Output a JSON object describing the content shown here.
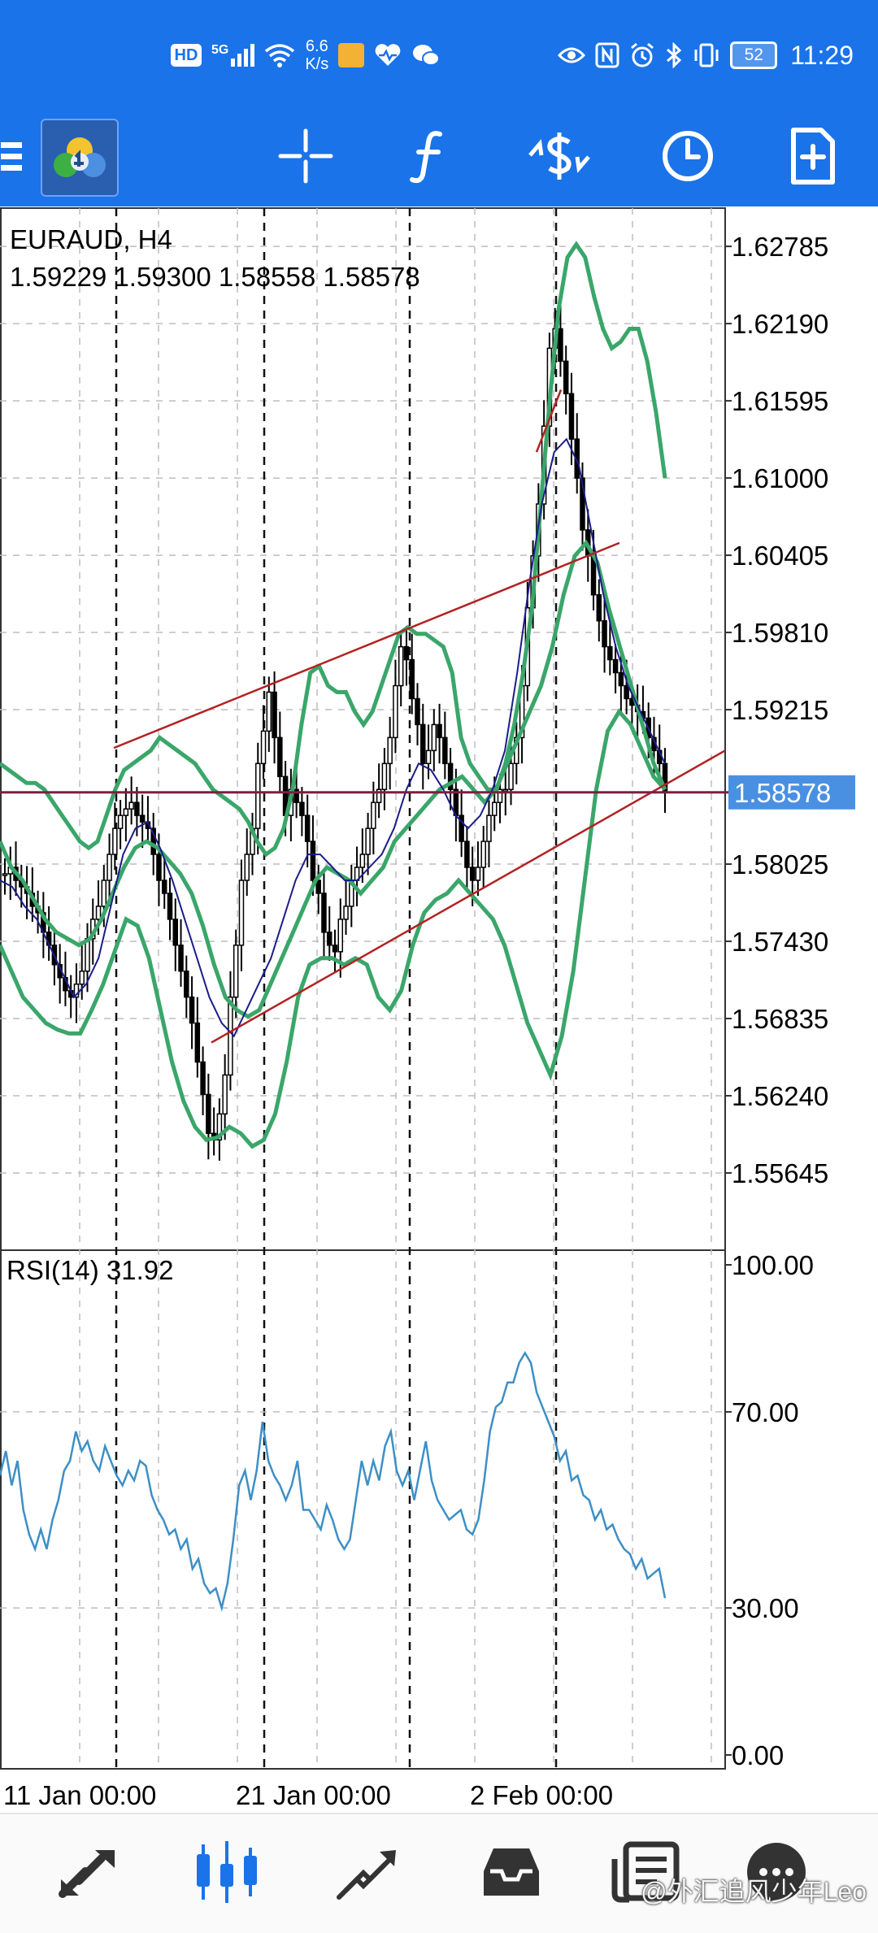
{
  "status_bar": {
    "left_icons": [
      "hd-icon",
      "5g-signal-icon",
      "wifi-icon",
      "app-notification-icon",
      "health-icon",
      "wechat-icon"
    ],
    "hd": "HD",
    "net_type": "5G",
    "speed_value": "6.6",
    "speed_unit": "K/s",
    "right_icons": [
      "eye-icon",
      "nfc-icon",
      "alarm-icon",
      "bluetooth-icon",
      "vibrate-icon"
    ],
    "battery": "52",
    "time": "11:29"
  },
  "toolbar": {
    "items": [
      "menu-icon",
      "app-logo",
      "crosshair-icon",
      "indicators-icon",
      "trade-icon",
      "timeframe-icon",
      "new-order-icon"
    ]
  },
  "chart": {
    "symbol": "EURAUD, H4",
    "ohlc": "1.59229 1.59300 1.58558 1.58578",
    "current_price": "1.58578",
    "price_axis": [
      "1.62785",
      "1.62190",
      "1.61595",
      "1.61000",
      "1.60405",
      "1.59810",
      "1.59215",
      "1.58025",
      "1.57430",
      "1.56835",
      "1.56240",
      "1.55645"
    ],
    "time_axis": [
      "11 Jan 00:00",
      "21 Jan 00:00",
      "2 Feb 00:00"
    ],
    "colors": {
      "bollinger": "#3aa66a",
      "moving_average": "#1c1c8a",
      "trendline": "#b22222",
      "price_line": "#7a2040",
      "bid_badge": "#4a90e2",
      "rsi": "#3d8fc6"
    }
  },
  "rsi": {
    "label": "RSI(14) 31.92",
    "axis": [
      "100.00",
      "70.00",
      "30.00",
      "0.00"
    ]
  },
  "bottom_nav": {
    "items": [
      "quotes-icon",
      "chart-icon",
      "trade-icon",
      "history-icon",
      "news-icon",
      "messages-icon"
    ]
  },
  "watermark": "@外汇追风少年Leo",
  "chart_data": [
    {
      "type": "line",
      "title": "EURAUD, H4",
      "xlabel": "",
      "ylabel": "",
      "x_ticks": [
        "11 Jan 00:00",
        "21 Jan 00:00",
        "2 Feb 00:00"
      ],
      "ylim": [
        1.5505,
        1.6308
      ],
      "y_ticks": [
        1.62785,
        1.6219,
        1.61595,
        1.61,
        1.60405,
        1.5981,
        1.59215,
        1.58025,
        1.5743,
        1.56835,
        1.5624,
        1.55645
      ],
      "grid": true,
      "current_price": 1.58578,
      "last_bar": {
        "open": 1.59229,
        "high": 1.593,
        "low": 1.58558,
        "close": 1.58578
      },
      "series": [
        {
          "values": [
            1.5795,
            1.58,
            1.579,
            1.5785,
            1.578,
            1.577,
            1.5765,
            1.575,
            1.574,
            1.5725,
            1.5715,
            1.5705,
            1.57,
            1.571,
            1.572,
            1.5745,
            1.576,
            1.577,
            1.579,
            1.581,
            1.583,
            1.584,
            1.5845,
            1.585,
            1.584,
            1.5835,
            1.583,
            1.581,
            1.579,
            1.578,
            1.576,
            1.574,
            1.572,
            1.57,
            1.568,
            1.565,
            1.5625,
            1.5595,
            1.559,
            1.561,
            1.564,
            1.57,
            1.574,
            1.579,
            1.581,
            1.583,
            1.588,
            1.5905,
            1.5935,
            1.59,
            1.587,
            1.584,
            1.586,
            1.585,
            1.584,
            1.582,
            1.579,
            1.578,
            1.575,
            1.574,
            1.5735,
            1.576,
            1.577,
            1.579,
            1.58,
            1.581,
            1.583,
            1.585,
            1.586,
            1.588,
            1.59,
            1.594,
            1.597,
            1.596,
            1.593,
            1.591,
            1.588,
            1.589,
            1.591,
            1.59,
            1.588,
            1.586,
            1.584,
            1.582,
            1.58,
            1.579,
            1.58,
            1.582,
            1.584,
            1.585,
            1.586,
            1.586,
            1.588,
            1.59,
            1.594,
            1.6,
            1.604,
            1.608,
            1.614,
            1.62,
            1.6215,
            1.619,
            1.6165,
            1.613,
            1.61,
            1.606,
            1.604,
            1.601,
            1.599,
            1.597,
            1.596,
            1.595,
            1.594,
            1.593,
            1.5925,
            1.592,
            1.5915,
            1.59,
            1.589,
            1.588,
            1.5858
          ]
        },
        {
          "values": [
            1.588,
            1.5875,
            1.587,
            1.5865,
            1.5865,
            1.586,
            1.585,
            1.584,
            1.583,
            1.582,
            1.5815,
            1.582,
            1.584,
            1.586,
            1.5875,
            1.588,
            1.5885,
            1.589,
            1.59,
            1.5895,
            1.589,
            1.5885,
            1.588,
            1.587,
            1.586,
            1.5855,
            1.585,
            1.5845,
            1.5835,
            1.582,
            1.581,
            1.5815,
            1.583,
            1.586,
            1.591,
            1.595,
            1.5955,
            1.594,
            1.5935,
            1.5935,
            1.592,
            1.591,
            1.592,
            1.594,
            1.596,
            1.598,
            1.5985,
            1.598,
            1.598,
            1.5975,
            1.597,
            1.595,
            1.59,
            1.588,
            1.587,
            1.586,
            1.586,
            1.588,
            1.591,
            1.595,
            1.6,
            1.608,
            1.616,
            1.623,
            1.627,
            1.628,
            1.627,
            1.624,
            1.6215,
            1.62,
            1.6205,
            1.6215,
            1.6215,
            1.619,
            1.615,
            1.61
          ]
        },
        {
          "values": [
            1.582,
            1.58,
            1.579,
            1.5775,
            1.576,
            1.575,
            1.5745,
            1.574,
            1.5745,
            1.576,
            1.578,
            1.58,
            1.5815,
            1.582,
            1.5815,
            1.5805,
            1.5795,
            1.578,
            1.5755,
            1.5725,
            1.57,
            1.569,
            1.5685,
            1.569,
            1.571,
            1.573,
            1.575,
            1.577,
            1.579,
            1.58,
            1.5795,
            1.579,
            1.578,
            1.579,
            1.58,
            1.582,
            1.583,
            1.584,
            1.585,
            1.586,
            1.5865,
            1.587,
            1.586,
            1.585,
            1.586,
            1.588,
            1.59,
            1.592,
            1.594,
            1.597,
            1.601,
            1.604,
            1.605,
            1.6035,
            1.6,
            1.597,
            1.594,
            1.591,
            1.588,
            1.586
          ]
        },
        {
          "values": [
            1.574,
            1.572,
            1.57,
            1.569,
            1.568,
            1.5675,
            1.5672,
            1.5672,
            1.569,
            1.571,
            1.5735,
            1.576,
            1.5755,
            1.573,
            1.569,
            1.565,
            1.562,
            1.56,
            1.559,
            1.5592,
            1.56,
            1.5595,
            1.5585,
            1.559,
            1.561,
            1.565,
            1.57,
            1.5725,
            1.573,
            1.573,
            1.5725,
            1.573,
            1.5725,
            1.57,
            1.569,
            1.5705,
            1.574,
            1.5765,
            1.5775,
            1.578,
            1.579,
            1.578,
            1.577,
            1.576,
            1.574,
            1.571,
            1.568,
            1.566,
            1.564,
            1.567,
            1.572,
            1.579,
            1.586,
            1.5905,
            1.592,
            1.591,
            1.589,
            1.587,
            1.586
          ]
        },
        {
          "values": [
            1.579,
            1.5785,
            1.577,
            1.576,
            1.574,
            1.572,
            1.57,
            1.571,
            1.573,
            1.577,
            1.581,
            1.583,
            1.5835,
            1.5815,
            1.579,
            1.576,
            1.573,
            1.57,
            1.568,
            1.567,
            1.569,
            1.571,
            1.573,
            1.576,
            1.579,
            1.581,
            1.581,
            1.58,
            1.579,
            1.579,
            1.58,
            1.581,
            1.583,
            1.586,
            1.588,
            1.5875,
            1.586,
            1.584,
            1.583,
            1.584,
            1.586,
            1.589,
            1.595,
            1.602,
            1.608,
            1.612,
            1.613,
            1.611,
            1.606,
            1.601,
            1.597,
            1.594,
            1.592,
            1.59,
            1.588
          ]
        }
      ]
    },
    {
      "type": "line",
      "title": "RSI(14) 31.92",
      "xlabel": "",
      "ylabel": "",
      "ylim": [
        0,
        100
      ],
      "y_ticks": [
        100,
        70,
        30,
        0
      ],
      "grid": true,
      "series": [
        {
          "values": [
            57,
            62,
            55,
            60,
            50,
            45,
            42,
            46,
            42,
            48,
            52,
            58,
            60,
            66,
            62,
            64,
            60,
            58,
            63,
            60,
            57,
            55,
            58,
            56,
            60,
            59,
            53,
            50,
            48,
            45,
            46,
            42,
            44,
            38,
            40,
            35,
            33,
            34,
            30,
            35,
            44,
            55,
            58,
            52,
            58,
            68,
            60,
            57,
            55,
            52,
            55,
            60,
            50,
            50,
            48,
            46,
            51,
            48,
            44,
            42,
            44,
            52,
            60,
            55,
            60,
            56,
            63,
            66,
            58,
            55,
            58,
            52,
            58,
            64,
            56,
            52,
            50,
            48,
            49,
            50,
            46,
            45,
            48,
            56,
            66,
            71,
            72,
            76,
            76,
            80,
            82,
            80,
            74,
            71,
            68,
            65,
            60,
            62,
            56,
            57,
            53,
            52,
            48,
            50,
            46,
            47,
            44,
            42,
            41,
            38,
            40,
            36,
            37,
            38,
            32
          ]
        }
      ]
    }
  ]
}
